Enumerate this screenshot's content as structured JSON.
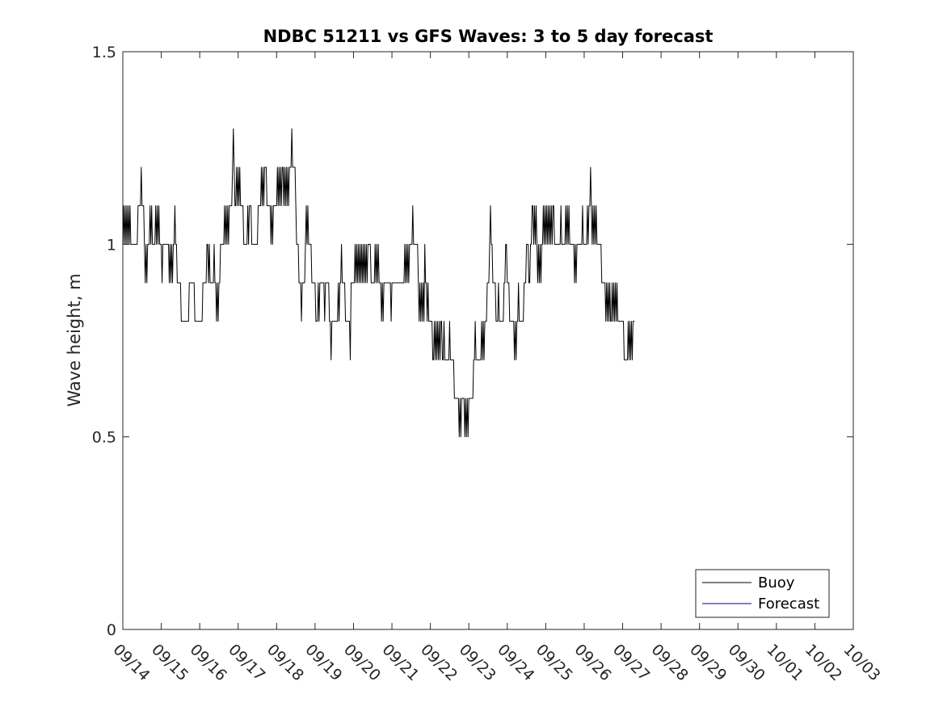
{
  "chart_data": {
    "type": "line",
    "title": "NDBC 51211 vs GFS Waves: 3 to 5 day forecast",
    "xlabel": "",
    "ylabel": "Wave height, m",
    "ylim": [
      0,
      1.5
    ],
    "yticks": [
      "0",
      "0.5",
      "1",
      "1.5"
    ],
    "xlim_days": [
      0,
      19
    ],
    "xticks": [
      "09/14",
      "09/15",
      "09/16",
      "09/17",
      "09/18",
      "09/19",
      "09/20",
      "09/21",
      "09/22",
      "09/23",
      "09/24",
      "09/25",
      "09/26",
      "09/27",
      "09/28",
      "09/29",
      "09/30",
      "10/01",
      "10/02",
      "10/03"
    ],
    "grid": false,
    "legend": {
      "placement": "bottom-right",
      "entries": [
        {
          "label": "Buoy",
          "color": "#000000"
        },
        {
          "label": "Forecast",
          "color": "#000080"
        }
      ]
    },
    "series": [
      {
        "name": "Buoy",
        "color": "#000000",
        "x_start_day": 0,
        "step_day": 0.020833,
        "values": [
          1.0,
          1.1,
          1.0,
          1.1,
          1.0,
          1.1,
          1.0,
          1.1,
          1.0,
          1.1,
          1.0,
          1.0,
          1.0,
          1.0,
          1.0,
          1.0,
          1.0,
          1.0,
          1.0,
          1.1,
          1.1,
          1.1,
          1.1,
          1.2,
          1.1,
          1.1,
          1.1,
          1.0,
          0.9,
          1.0,
          0.9,
          1.0,
          1.0,
          1.0,
          1.1,
          1.0,
          1.1,
          1.0,
          1.0,
          1.0,
          1.0,
          1.1,
          1.0,
          1.1,
          1.0,
          1.1,
          1.0,
          1.0,
          1.0,
          0.9,
          1.0,
          1.0,
          1.0,
          1.0,
          1.0,
          1.0,
          1.0,
          1.0,
          0.9,
          1.0,
          0.9,
          1.0,
          0.9,
          1.0,
          1.0,
          1.1,
          1.0,
          1.0,
          0.9,
          0.9,
          0.9,
          0.9,
          0.9,
          0.8,
          0.8,
          0.8,
          0.8,
          0.8,
          0.8,
          0.8,
          0.8,
          0.8,
          0.8,
          0.9,
          0.9,
          0.9,
          0.9,
          0.9,
          0.9,
          0.9,
          0.8,
          0.8,
          0.8,
          0.8,
          0.8,
          0.8,
          0.8,
          0.8,
          0.8,
          0.8,
          0.9,
          0.9,
          0.9,
          0.9,
          0.9,
          1.0,
          1.0,
          0.9,
          1.0,
          0.9,
          0.9,
          0.9,
          0.9,
          0.9,
          1.0,
          0.9,
          0.9,
          0.8,
          0.9,
          0.8,
          0.9,
          0.9,
          1.0,
          1.0,
          1.0,
          1.0,
          1.0,
          1.1,
          1.0,
          1.1,
          1.0,
          1.1,
          1.0,
          1.1,
          1.1,
          1.1,
          1.1,
          1.2,
          1.3,
          1.2,
          1.1,
          1.1,
          1.2,
          1.1,
          1.2,
          1.1,
          1.2,
          1.1,
          1.1,
          1.1,
          1.1,
          1.0,
          1.0,
          1.0,
          1.0,
          1.0,
          1.1,
          1.0,
          1.1,
          1.1,
          1.1,
          1.0,
          1.0,
          1.0,
          1.0,
          1.0,
          1.0,
          1.0,
          1.0,
          1.1,
          1.1,
          1.1,
          1.1,
          1.2,
          1.1,
          1.2,
          1.1,
          1.2,
          1.2,
          1.2,
          1.1,
          1.1,
          1.1,
          1.1,
          1.1,
          1.0,
          1.1,
          1.0,
          1.1,
          1.1,
          1.1,
          1.1,
          1.1,
          1.2,
          1.1,
          1.2,
          1.1,
          1.2,
          1.1,
          1.2,
          1.2,
          1.1,
          1.2,
          1.1,
          1.2,
          1.1,
          1.2,
          1.1,
          1.2,
          1.2,
          1.2,
          1.3,
          1.2,
          1.2,
          1.2,
          1.2,
          1.1,
          1.0,
          1.0,
          1.0,
          0.9,
          0.9,
          0.9,
          0.8,
          0.9,
          0.9,
          0.9,
          0.9,
          1.0,
          1.1,
          1.0,
          1.1,
          1.0,
          1.0,
          1.0,
          1.0,
          0.9,
          0.9,
          0.9,
          0.9,
          0.9,
          0.8,
          0.8,
          0.8,
          0.9,
          0.8,
          0.9,
          0.9,
          0.9,
          0.9,
          0.9,
          0.9,
          0.8,
          0.9,
          0.9,
          0.9,
          0.9,
          0.9,
          0.8,
          0.8,
          0.7,
          0.8,
          0.8,
          0.8,
          0.8,
          0.8,
          0.8,
          0.8,
          0.8,
          0.9,
          0.8,
          0.9,
          0.9,
          1.0,
          0.9,
          0.9,
          0.9,
          0.9,
          0.8,
          0.8,
          0.8,
          0.8,
          0.8,
          0.8,
          0.7,
          0.9,
          0.9,
          0.9,
          0.9,
          0.9,
          1.0,
          0.9,
          1.0,
          0.9,
          1.0,
          0.9,
          1.0,
          0.9,
          1.0,
          0.9,
          1.0,
          0.9,
          1.0,
          0.9,
          1.0,
          0.9,
          1.0,
          1.0,
          1.0,
          1.0,
          0.9,
          0.9,
          0.9,
          0.9,
          0.9,
          1.0,
          0.9,
          1.0,
          0.9,
          1.0,
          0.9,
          0.9,
          0.9,
          0.8,
          0.9,
          0.8,
          0.9,
          0.9,
          0.9,
          0.9,
          0.9,
          0.9,
          0.9,
          0.9,
          0.9,
          0.8,
          0.9,
          0.9,
          0.9,
          0.9,
          0.9,
          0.9,
          0.9,
          0.9,
          0.9,
          0.9,
          0.9,
          0.9,
          0.9,
          0.9,
          0.9,
          0.9,
          1.0,
          0.9,
          1.0,
          0.9,
          1.0,
          0.9,
          1.0,
          1.0,
          1.0,
          1.0,
          1.1,
          1.0,
          1.0,
          1.0,
          1.0,
          1.0,
          1.0,
          0.9,
          0.8,
          0.9,
          0.8,
          0.9,
          0.8,
          0.9,
          0.8,
          1.0,
          0.9,
          0.9,
          0.8,
          0.9,
          0.8,
          0.8,
          0.8,
          0.8,
          0.8,
          0.7,
          0.7,
          0.8,
          0.7,
          0.8,
          0.7,
          0.8,
          0.7,
          0.8,
          0.7,
          0.8,
          0.8,
          0.7,
          0.7,
          0.8,
          0.7,
          0.7,
          0.7,
          0.7,
          0.7,
          0.7,
          0.8,
          0.7,
          0.7,
          0.7,
          0.7,
          0.7,
          0.6,
          0.6,
          0.6,
          0.6,
          0.6,
          0.6,
          0.5,
          0.6,
          0.5,
          0.6,
          0.6,
          0.6,
          0.6,
          0.5,
          0.6,
          0.5,
          0.6,
          0.5,
          0.6,
          0.6,
          0.6,
          0.6,
          0.6,
          0.6,
          0.7,
          0.7,
          0.8,
          0.7,
          0.7,
          0.7,
          0.7,
          0.7,
          0.7,
          0.7,
          0.8,
          0.7,
          0.8,
          0.7,
          0.8,
          0.8,
          0.8,
          0.9,
          0.9,
          0.9,
          1.0,
          1.1,
          1.0,
          1.0,
          0.9,
          0.9,
          0.9,
          0.9,
          0.8,
          0.8,
          0.8,
          0.9,
          0.8,
          0.8,
          0.8,
          0.8,
          0.8,
          0.8,
          0.9,
          0.9,
          1.0,
          1.0,
          0.9,
          0.9,
          0.9,
          0.8,
          0.8,
          0.8,
          0.8,
          0.8,
          0.8,
          0.7,
          0.8,
          0.7,
          0.8,
          0.8,
          0.9,
          0.8,
          0.8,
          0.8,
          0.8,
          0.8,
          0.8,
          0.9,
          0.9,
          0.9,
          1.0,
          1.0,
          1.0,
          0.9,
          0.9,
          1.0,
          1.0,
          1.1,
          1.1,
          1.0,
          1.1,
          1.0,
          1.1,
          1.0,
          0.9,
          1.0,
          0.9,
          1.0,
          0.9,
          1.0,
          1.0,
          1.1,
          1.0,
          1.1,
          1.0,
          1.1,
          1.0,
          1.1,
          1.0,
          1.1,
          1.0,
          1.1,
          1.0,
          1.1,
          1.1,
          1.0,
          1.0,
          1.0,
          1.0,
          1.0,
          1.0,
          1.0,
          1.0,
          1.1,
          1.0,
          1.0,
          1.0,
          1.0,
          1.0,
          1.1,
          1.0,
          1.1,
          1.0,
          1.1,
          1.0,
          1.0,
          1.0,
          1.0,
          1.0,
          1.0,
          0.9,
          1.0,
          0.9,
          1.0,
          1.0,
          1.0,
          1.0,
          1.0,
          1.0,
          1.0,
          1.1,
          1.0,
          1.0,
          1.0,
          1.0,
          1.0,
          1.1,
          1.0,
          1.1,
          1.1,
          1.2,
          1.1,
          1.0,
          1.1,
          1.0,
          1.1,
          1.0,
          1.1,
          1.0,
          1.0,
          1.0,
          1.0,
          1.0,
          1.0,
          0.9,
          0.9,
          0.9,
          0.9,
          0.9,
          0.8,
          0.9,
          0.8,
          0.9,
          0.8,
          0.9,
          0.8,
          0.8,
          0.9,
          0.8,
          0.9,
          0.8,
          0.9,
          0.8,
          0.9,
          0.8,
          0.8,
          0.8,
          0.8,
          0.8,
          0.8,
          0.8,
          0.8,
          0.7,
          0.7,
          0.7,
          0.7,
          0.7,
          0.8,
          0.7,
          0.8,
          0.7,
          0.8,
          0.7,
          0.8,
          0.8,
          0.8
        ]
      },
      {
        "name": "Forecast",
        "color": "#000080",
        "values": []
      }
    ]
  }
}
